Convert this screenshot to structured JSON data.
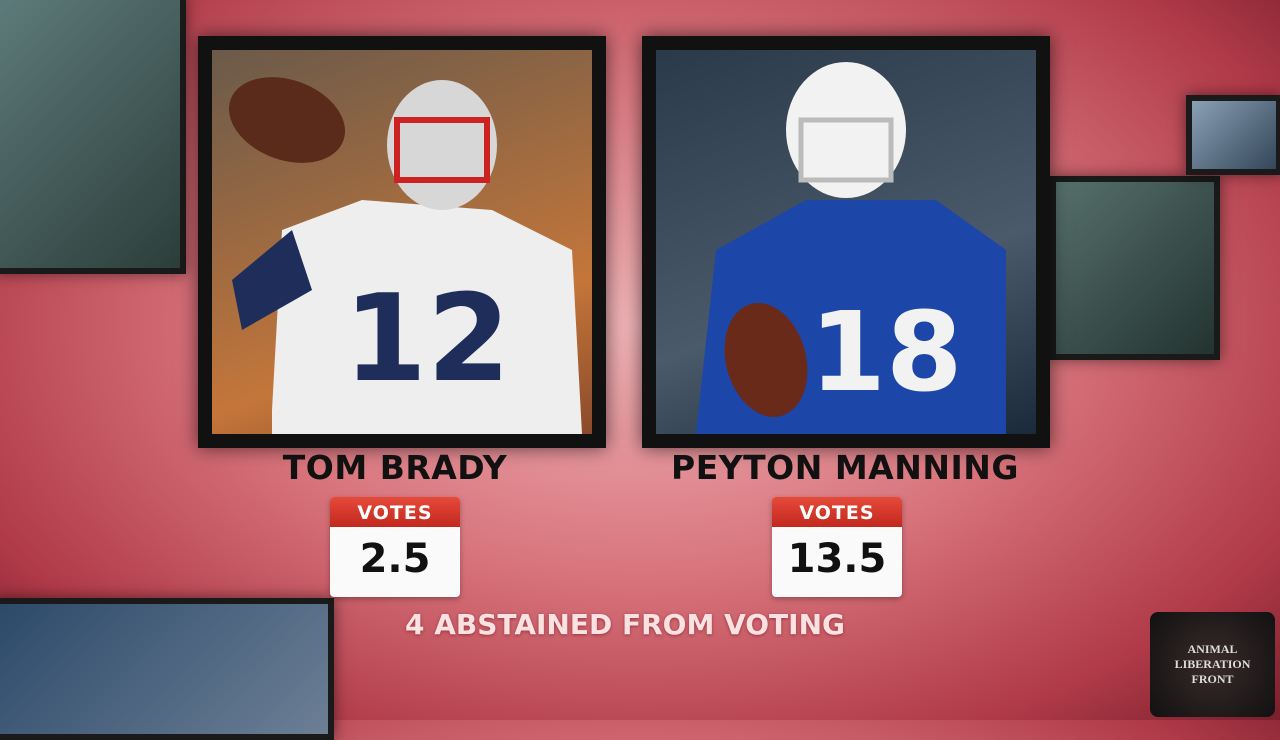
{
  "players": [
    {
      "name": "TOM BRADY",
      "votes_label": "VOTES",
      "votes": 2.5
    },
    {
      "name": "PEYTON MANNING",
      "votes_label": "VOTES",
      "votes": 13.5
    }
  ],
  "footer": "4 ABSTAINED FROM VOTING",
  "watermark": "ANIMAL LIBERATION FRONT"
}
